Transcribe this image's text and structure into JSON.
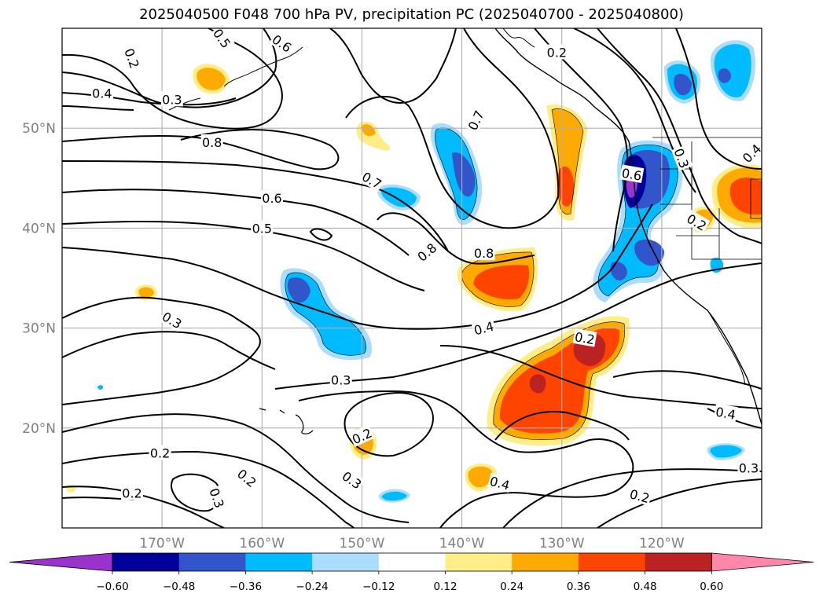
{
  "title": "2025040500 F048 700 hPa PV, precipitation PC (2025040700 - 2025040800)",
  "map": {
    "projection": "cylindrical",
    "lon_range": [
      -180,
      -110
    ],
    "lat_range": [
      10,
      60
    ],
    "gridlines": true,
    "lat_ticks": [
      {
        "lat": 50,
        "label": "50°N"
      },
      {
        "lat": 40,
        "label": "40°N"
      },
      {
        "lat": 30,
        "label": "30°N"
      },
      {
        "lat": 20,
        "label": "20°N"
      }
    ],
    "lon_ticks": [
      {
        "lon": -170,
        "label": "170°W"
      },
      {
        "lon": -160,
        "label": "160°W"
      },
      {
        "lon": -150,
        "label": "150°W"
      },
      {
        "lon": -140,
        "label": "140°W"
      },
      {
        "lon": -130,
        "label": "130°W"
      },
      {
        "lon": -120,
        "label": "120°W"
      }
    ]
  },
  "contour_labels": [
    {
      "text": "0.2",
      "lon": -173,
      "lat": 57,
      "rot": 70
    },
    {
      "text": "0.5",
      "lon": -164,
      "lat": 59,
      "rot": 55
    },
    {
      "text": "0.6",
      "lon": -158,
      "lat": 58.5,
      "rot": 35
    },
    {
      "text": "0.4",
      "lon": -176,
      "lat": 53.5,
      "rot": 0
    },
    {
      "text": "0.3",
      "lon": -169,
      "lat": 52.9,
      "rot": 0
    },
    {
      "text": "0.8",
      "lon": -165,
      "lat": 48.6,
      "rot": 0
    },
    {
      "text": "0.7",
      "lon": -149,
      "lat": 44.8,
      "rot": 30
    },
    {
      "text": "0.6",
      "lon": -159,
      "lat": 43,
      "rot": 0
    },
    {
      "text": "0.5",
      "lon": -160,
      "lat": 40,
      "rot": 0
    },
    {
      "text": "0.7",
      "lon": -138.6,
      "lat": 50.8,
      "rot": -65
    },
    {
      "text": "0.2",
      "lon": -130.5,
      "lat": 57.6,
      "rot": 0
    },
    {
      "text": "0.6",
      "lon": -123,
      "lat": 45.4,
      "rot": 10
    },
    {
      "text": "0.3",
      "lon": -118,
      "lat": 47,
      "rot": 70
    },
    {
      "text": "0.4",
      "lon": -111,
      "lat": 47.5,
      "rot": -45
    },
    {
      "text": "0.8",
      "lon": -143.5,
      "lat": 37.6,
      "rot": -40
    },
    {
      "text": "0.8",
      "lon": -137.8,
      "lat": 37.5,
      "rot": 0
    },
    {
      "text": "0.2",
      "lon": -116.5,
      "lat": 40.6,
      "rot": 30
    },
    {
      "text": "0.3",
      "lon": -169,
      "lat": 30.8,
      "rot": 30
    },
    {
      "text": "0.4",
      "lon": -137.8,
      "lat": 30,
      "rot": -15
    },
    {
      "text": "0.2",
      "lon": -127.7,
      "lat": 29,
      "rot": 10
    },
    {
      "text": "0.3",
      "lon": -152.1,
      "lat": 24.8,
      "rot": 0
    },
    {
      "text": "0.4",
      "lon": -113.6,
      "lat": 21.5,
      "rot": 10
    },
    {
      "text": "0.2",
      "lon": -150,
      "lat": 19.2,
      "rot": -25
    },
    {
      "text": "0.2",
      "lon": -170.2,
      "lat": 17.5,
      "rot": 0
    },
    {
      "text": "0.2",
      "lon": -161.5,
      "lat": 15,
      "rot": 40
    },
    {
      "text": "0.3",
      "lon": -151,
      "lat": 14.8,
      "rot": 35
    },
    {
      "text": "0.4",
      "lon": -136.2,
      "lat": 14.5,
      "rot": 15
    },
    {
      "text": "0.3",
      "lon": -111.3,
      "lat": 16,
      "rot": 0
    },
    {
      "text": "0.2",
      "lon": -173,
      "lat": 13.5,
      "rot": 0
    },
    {
      "text": "0.3",
      "lon": -164.5,
      "lat": 13,
      "rot": 70
    },
    {
      "text": "0.2",
      "lon": -122.2,
      "lat": 13.2,
      "rot": 15
    }
  ],
  "colorbar": {
    "ticks": [
      "−0.60",
      "−0.48",
      "−0.36",
      "−0.24",
      "−0.12",
      "0.12",
      "0.24",
      "0.36",
      "0.48",
      "0.60"
    ],
    "colors": [
      "#9933CC",
      "#000099",
      "#3355CC",
      "#00BBFF",
      "#AADDFF",
      "#FFFFFF",
      "#FFEE88",
      "#FFAA00",
      "#FF4400",
      "#BB2222",
      "#FF88AA"
    ]
  }
}
